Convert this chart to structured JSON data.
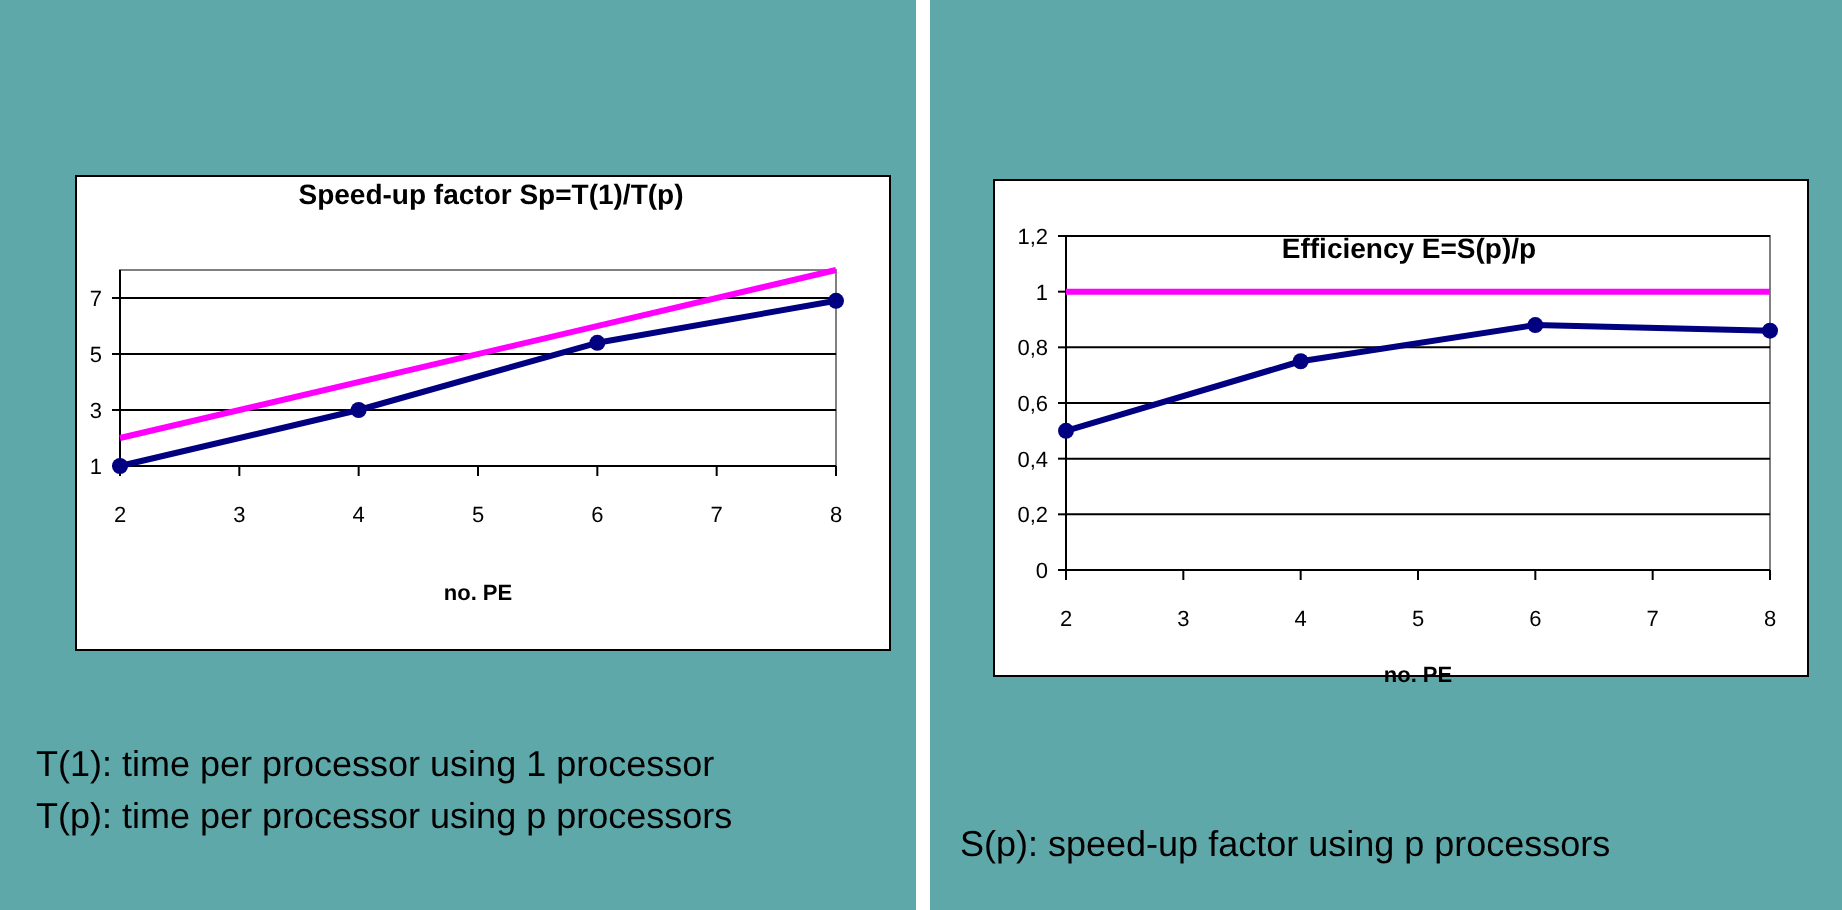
{
  "chart_data": [
    {
      "type": "line",
      "title": "Speed-up factor Sp=T(1)/T(p)",
      "xlabel": "no. PE",
      "xlim": [
        2,
        8
      ],
      "xticks": [
        2,
        3,
        4,
        5,
        6,
        7,
        8
      ],
      "ylim": [
        1,
        8
      ],
      "yticks": [
        1,
        3,
        5,
        7
      ],
      "grid": "y",
      "line_style": "solid",
      "series": [
        {
          "color": "#000080",
          "marker": "circle",
          "x": [
            2,
            4,
            6,
            8
          ],
          "values": [
            1,
            3,
            5.4,
            6.9
          ]
        },
        {
          "color": "#ff00ff",
          "marker": "none",
          "x": [
            2,
            8
          ],
          "values": [
            2,
            8
          ]
        }
      ],
      "annotations": [
        "T(1): time per processor using 1 processor",
        "T(p): time per processor using p processors"
      ]
    },
    {
      "type": "line",
      "title": "Efficiency E=S(p)/p",
      "xlabel": "no. PE",
      "xlim": [
        2,
        8
      ],
      "xticks": [
        2,
        3,
        4,
        5,
        6,
        7,
        8
      ],
      "ylim": [
        0,
        1.2
      ],
      "yticks": [
        0,
        {
          "value": 0.2,
          "label": "0,2"
        },
        {
          "value": 0.4,
          "label": "0,4"
        },
        {
          "value": 0.6,
          "label": "0,6"
        },
        {
          "value": 0.8,
          "label": "0,8"
        },
        1,
        {
          "value": 1.2,
          "label": "1,2"
        }
      ],
      "grid": "y",
      "line_style": "solid",
      "series": [
        {
          "color": "#000080",
          "marker": "circle",
          "x": [
            2,
            4,
            6,
            8
          ],
          "values": [
            0.5,
            0.75,
            0.88,
            0.86
          ]
        },
        {
          "color": "#ff00ff",
          "marker": "none",
          "x": [
            2,
            8
          ],
          "values": [
            1,
            1
          ]
        }
      ],
      "annotations": [
        "S(p): speed-up factor using p processors"
      ]
    }
  ]
}
